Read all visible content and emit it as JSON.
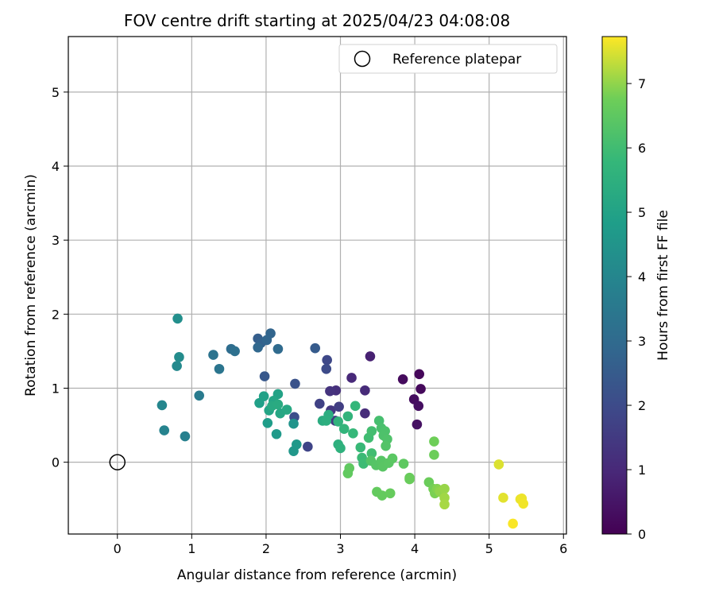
{
  "chart_data": {
    "type": "scatter",
    "title": "FOV centre drift starting at 2025/04/23 04:08:08",
    "xlabel": "Angular distance from reference (arcmin)",
    "ylabel": "Rotation from reference (arcmin)",
    "xlim": [
      -0.66,
      6.04
    ],
    "ylim": [
      -0.97,
      5.75
    ],
    "xticks": [
      "0",
      "1",
      "2",
      "3",
      "4",
      "5",
      "6"
    ],
    "yticks": [
      "0",
      "1",
      "2",
      "3",
      "4",
      "5"
    ],
    "grid": true,
    "legend": {
      "position": "top-right",
      "entries": [
        "Reference platepar"
      ]
    },
    "reference_point": {
      "x": 0,
      "y": 0
    },
    "colorbar": {
      "label": "Hours from first FF file",
      "range": [
        0,
        7.73
      ],
      "ticks": [
        "0",
        "1",
        "2",
        "3",
        "4",
        "5",
        "6",
        "7"
      ],
      "colormap": "viridis"
    },
    "points": [
      {
        "x": 4.06,
        "y": 1.19,
        "h": 0.15
      },
      {
        "x": 4.08,
        "y": 0.99,
        "h": 0.2
      },
      {
        "x": 3.84,
        "y": 1.12,
        "h": 0.25
      },
      {
        "x": 3.99,
        "y": 0.85,
        "h": 0.3
      },
      {
        "x": 4.05,
        "y": 0.76,
        "h": 0.35
      },
      {
        "x": 4.03,
        "y": 0.51,
        "h": 0.4
      },
      {
        "x": 3.4,
        "y": 1.43,
        "h": 0.8
      },
      {
        "x": 3.15,
        "y": 1.14,
        "h": 1.0
      },
      {
        "x": 3.33,
        "y": 0.97,
        "h": 1.05
      },
      {
        "x": 3.33,
        "y": 0.66,
        "h": 1.1
      },
      {
        "x": 2.94,
        "y": 0.97,
        "h": 1.2
      },
      {
        "x": 2.86,
        "y": 0.96,
        "h": 1.3
      },
      {
        "x": 2.87,
        "y": 0.7,
        "h": 1.4
      },
      {
        "x": 2.93,
        "y": 0.56,
        "h": 1.5
      },
      {
        "x": 2.98,
        "y": 0.75,
        "h": 1.6
      },
      {
        "x": 2.72,
        "y": 0.79,
        "h": 1.7
      },
      {
        "x": 2.56,
        "y": 0.21,
        "h": 1.8
      },
      {
        "x": 2.82,
        "y": 1.38,
        "h": 1.9
      },
      {
        "x": 2.81,
        "y": 1.26,
        "h": 2.0
      },
      {
        "x": 2.38,
        "y": 0.61,
        "h": 2.1
      },
      {
        "x": 2.39,
        "y": 1.06,
        "h": 2.2
      },
      {
        "x": 1.98,
        "y": 1.16,
        "h": 2.4
      },
      {
        "x": 2.66,
        "y": 1.54,
        "h": 2.5
      },
      {
        "x": 1.89,
        "y": 1.67,
        "h": 2.6
      },
      {
        "x": 1.93,
        "y": 1.61,
        "h": 2.7
      },
      {
        "x": 2.06,
        "y": 1.74,
        "h": 2.8
      },
      {
        "x": 2.01,
        "y": 1.65,
        "h": 2.85
      },
      {
        "x": 1.89,
        "y": 1.55,
        "h": 2.9
      },
      {
        "x": 2.16,
        "y": 1.53,
        "h": 3.0
      },
      {
        "x": 1.53,
        "y": 1.53,
        "h": 3.1
      },
      {
        "x": 1.58,
        "y": 1.5,
        "h": 3.2
      },
      {
        "x": 1.29,
        "y": 1.45,
        "h": 3.3
      },
      {
        "x": 1.37,
        "y": 1.26,
        "h": 3.4
      },
      {
        "x": 1.1,
        "y": 0.9,
        "h": 3.6
      },
      {
        "x": 0.91,
        "y": 0.35,
        "h": 3.8
      },
      {
        "x": 0.63,
        "y": 0.43,
        "h": 3.9
      },
      {
        "x": 0.6,
        "y": 0.77,
        "h": 4.0
      },
      {
        "x": 0.8,
        "y": 1.3,
        "h": 4.1
      },
      {
        "x": 0.83,
        "y": 1.42,
        "h": 4.2
      },
      {
        "x": 0.81,
        "y": 1.94,
        "h": 4.3
      },
      {
        "x": 2.37,
        "y": 0.52,
        "h": 4.5
      },
      {
        "x": 2.37,
        "y": 0.15,
        "h": 4.6
      },
      {
        "x": 2.41,
        "y": 0.24,
        "h": 4.65
      },
      {
        "x": 2.14,
        "y": 0.38,
        "h": 4.7
      },
      {
        "x": 2.02,
        "y": 0.53,
        "h": 4.8
      },
      {
        "x": 1.91,
        "y": 0.8,
        "h": 4.9
      },
      {
        "x": 1.97,
        "y": 0.89,
        "h": 4.95
      },
      {
        "x": 2.16,
        "y": 0.92,
        "h": 5.0
      },
      {
        "x": 2.04,
        "y": 0.7,
        "h": 5.05
      },
      {
        "x": 2.1,
        "y": 0.83,
        "h": 5.1
      },
      {
        "x": 2.19,
        "y": 0.66,
        "h": 5.15
      },
      {
        "x": 2.28,
        "y": 0.71,
        "h": 5.2
      },
      {
        "x": 2.08,
        "y": 0.76,
        "h": 5.25
      },
      {
        "x": 2.16,
        "y": 0.78,
        "h": 5.3
      },
      {
        "x": 2.76,
        "y": 0.56,
        "h": 5.35
      },
      {
        "x": 2.84,
        "y": 0.64,
        "h": 5.4
      },
      {
        "x": 2.81,
        "y": 0.56,
        "h": 5.45
      },
      {
        "x": 2.97,
        "y": 0.24,
        "h": 5.5
      },
      {
        "x": 3.0,
        "y": 0.19,
        "h": 5.55
      },
      {
        "x": 2.97,
        "y": 0.55,
        "h": 5.6
      },
      {
        "x": 3.1,
        "y": 0.62,
        "h": 5.65
      },
      {
        "x": 3.05,
        "y": 0.45,
        "h": 5.7
      },
      {
        "x": 3.2,
        "y": 0.76,
        "h": 5.75
      },
      {
        "x": 3.17,
        "y": 0.39,
        "h": 5.8
      },
      {
        "x": 3.27,
        "y": 0.2,
        "h": 5.85
      },
      {
        "x": 3.29,
        "y": 0.06,
        "h": 5.9
      },
      {
        "x": 3.31,
        "y": -0.02,
        "h": 5.95
      },
      {
        "x": 3.38,
        "y": 0.33,
        "h": 6.0
      },
      {
        "x": 3.42,
        "y": 0.12,
        "h": 6.02
      },
      {
        "x": 3.42,
        "y": 0.42,
        "h": 6.05
      },
      {
        "x": 3.52,
        "y": 0.56,
        "h": 6.1
      },
      {
        "x": 3.55,
        "y": 0.46,
        "h": 6.15
      },
      {
        "x": 3.6,
        "y": 0.42,
        "h": 6.2
      },
      {
        "x": 3.58,
        "y": 0.36,
        "h": 6.22
      },
      {
        "x": 3.63,
        "y": 0.31,
        "h": 6.25
      },
      {
        "x": 3.61,
        "y": 0.22,
        "h": 6.3
      },
      {
        "x": 3.41,
        "y": 0.02,
        "h": 6.32
      },
      {
        "x": 3.48,
        "y": -0.04,
        "h": 6.35
      },
      {
        "x": 3.55,
        "y": 0.02,
        "h": 6.38
      },
      {
        "x": 3.57,
        "y": -0.06,
        "h": 6.4
      },
      {
        "x": 3.65,
        "y": -0.01,
        "h": 6.42
      },
      {
        "x": 3.7,
        "y": 0.05,
        "h": 6.45
      },
      {
        "x": 3.85,
        "y": -0.02,
        "h": 6.5
      },
      {
        "x": 3.12,
        "y": -0.08,
        "h": 6.52
      },
      {
        "x": 3.1,
        "y": -0.15,
        "h": 6.55
      },
      {
        "x": 3.49,
        "y": -0.4,
        "h": 6.58
      },
      {
        "x": 3.56,
        "y": -0.45,
        "h": 6.6
      },
      {
        "x": 3.67,
        "y": -0.42,
        "h": 6.62
      },
      {
        "x": 3.93,
        "y": -0.21,
        "h": 6.65
      },
      {
        "x": 3.93,
        "y": -0.23,
        "h": 6.68
      },
      {
        "x": 4.19,
        "y": -0.27,
        "h": 6.7
      },
      {
        "x": 4.26,
        "y": 0.1,
        "h": 6.72
      },
      {
        "x": 4.26,
        "y": 0.28,
        "h": 6.75
      },
      {
        "x": 4.25,
        "y": -0.36,
        "h": 6.8
      },
      {
        "x": 4.27,
        "y": -0.42,
        "h": 6.85
      },
      {
        "x": 4.3,
        "y": -0.36,
        "h": 6.9
      },
      {
        "x": 4.33,
        "y": -0.38,
        "h": 6.95
      },
      {
        "x": 4.34,
        "y": -0.4,
        "h": 7.0
      },
      {
        "x": 4.4,
        "y": -0.36,
        "h": 7.05
      },
      {
        "x": 4.4,
        "y": -0.48,
        "h": 7.1
      },
      {
        "x": 4.4,
        "y": -0.57,
        "h": 7.15
      },
      {
        "x": 5.13,
        "y": -0.03,
        "h": 7.5
      },
      {
        "x": 5.19,
        "y": -0.48,
        "h": 7.55
      },
      {
        "x": 5.42,
        "y": -0.5,
        "h": 7.6
      },
      {
        "x": 5.44,
        "y": -0.49,
        "h": 7.62
      },
      {
        "x": 5.46,
        "y": -0.56,
        "h": 7.65
      },
      {
        "x": 5.32,
        "y": -0.83,
        "h": 7.7
      }
    ]
  }
}
